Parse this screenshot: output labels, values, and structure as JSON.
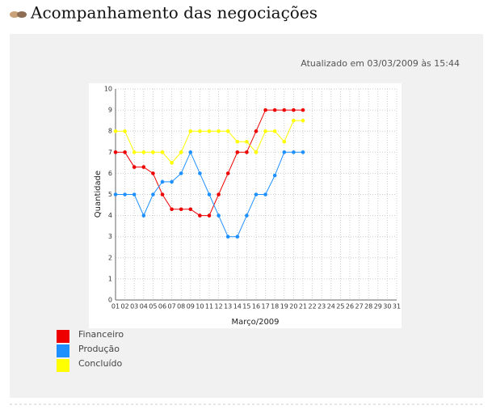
{
  "header": {
    "title": "Acompanhamento das negociações"
  },
  "updated": "Atualizado em 03/03/2009 às 15:44",
  "chart_data": {
    "type": "line",
    "xlabel": "Março/2009",
    "ylabel": "Quantidade",
    "categories": [
      "01",
      "02",
      "03",
      "04",
      "05",
      "06",
      "07",
      "08",
      "09",
      "10",
      "11",
      "12",
      "13",
      "14",
      "15",
      "16",
      "17",
      "18",
      "19",
      "20",
      "21",
      "22",
      "23",
      "24",
      "25",
      "26",
      "27",
      "28",
      "29",
      "30",
      "31"
    ],
    "ylim": [
      0,
      10
    ],
    "yticks": [
      0,
      1,
      2,
      3,
      4,
      5,
      6,
      7,
      8,
      9,
      10
    ],
    "grid": true,
    "series": [
      {
        "name": "Financeiro",
        "color": "#ee0000",
        "values": [
          7,
          7,
          6.3,
          6.3,
          6,
          5,
          4.3,
          4.3,
          4.3,
          4,
          4,
          5,
          6,
          7,
          7,
          8,
          9,
          9,
          9,
          9,
          9,
          null,
          null,
          null,
          null,
          null,
          null,
          null,
          null,
          null,
          null
        ]
      },
      {
        "name": "Produção",
        "color": "#1e90ff",
        "values": [
          5,
          5,
          5,
          4,
          5,
          5.6,
          5.6,
          6,
          7,
          6,
          5,
          4,
          3,
          3,
          4,
          5,
          5,
          5.9,
          7,
          7,
          7,
          null,
          null,
          null,
          null,
          null,
          null,
          null,
          null,
          null,
          null
        ]
      },
      {
        "name": "Concluído",
        "color": "#ffff00",
        "values": [
          8,
          8,
          7,
          7,
          7,
          7,
          6.5,
          7,
          8,
          8,
          8,
          8,
          8,
          7.5,
          7.5,
          7,
          8,
          8,
          7.5,
          8.5,
          8.5,
          null,
          null,
          null,
          null,
          null,
          null,
          null,
          null,
          null,
          null
        ]
      }
    ]
  }
}
